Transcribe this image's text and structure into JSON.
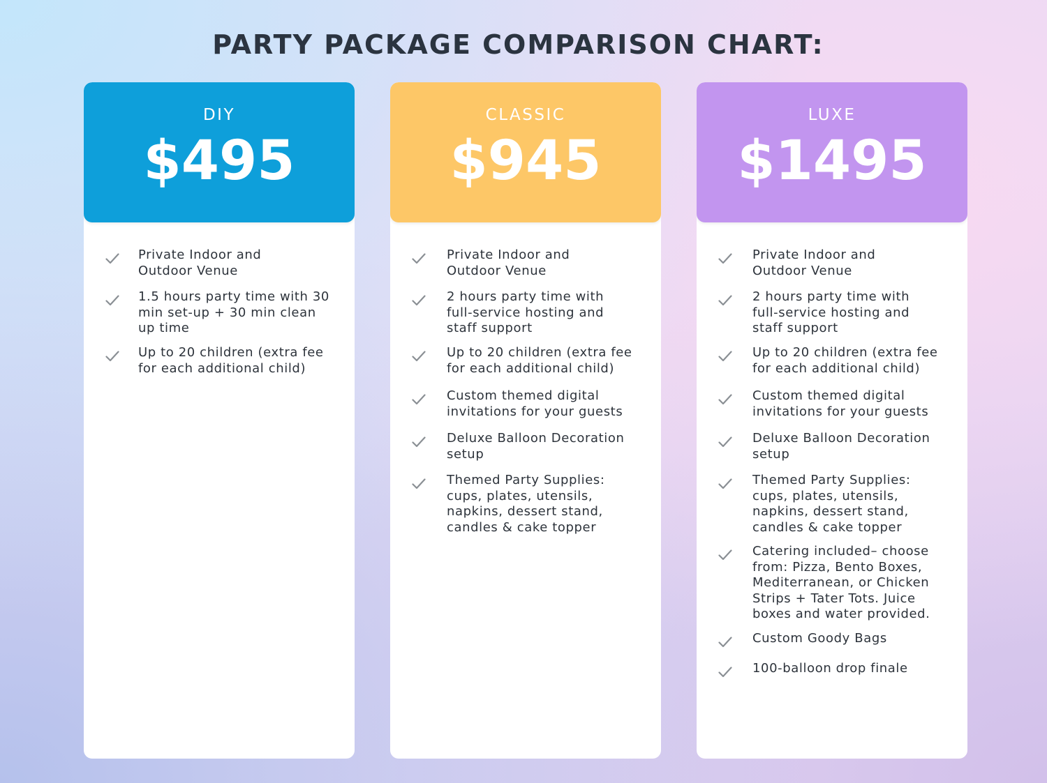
{
  "title": "PARTY PACKAGE COMPARISON CHART:",
  "check_icon": "check-icon",
  "colors": {
    "diy": "#0e9fda",
    "classic": "#fdc767",
    "luxe": "#c295ef",
    "text": "#2d333b",
    "check": "#8a8f94"
  },
  "packages": [
    {
      "name": "DIY",
      "price": "$495",
      "features": [
        "Private Indoor and\nOutdoor Venue",
        "1.5 hours party time with 30\nmin set-up + 30 min clean\nup time",
        "Up to 20 children (extra fee\nfor each additional child)"
      ]
    },
    {
      "name": "CLASSIC",
      "price": "$945",
      "features": [
        "Private Indoor and\nOutdoor Venue",
        "2 hours party time with\nfull-service hosting and\nstaff support",
        "Up to 20 children (extra fee\nfor each additional child)",
        "Custom themed digital\ninvitations for your guests",
        "Deluxe Balloon Decoration\nsetup",
        "Themed Party Supplies:\ncups, plates, utensils,\nnapkins, dessert stand,\ncandles & cake topper"
      ]
    },
    {
      "name": "LUXE",
      "price": "$1495",
      "features": [
        "Private Indoor and\nOutdoor Venue",
        "2 hours party time with\nfull-service hosting and\nstaff support",
        "Up to 20 children (extra fee\nfor each additional child)",
        "Custom themed digital\ninvitations for your guests",
        "Deluxe Balloon Decoration\nsetup",
        "Themed Party Supplies:\ncups, plates, utensils,\nnapkins, dessert stand,\ncandles & cake topper",
        "Catering included– choose\nfrom: Pizza, Bento Boxes,\nMediterranean, or Chicken\nStrips + Tater Tots. Juice\nboxes and water provided.",
        "Custom Goody Bags",
        "100-balloon drop finale"
      ]
    }
  ]
}
